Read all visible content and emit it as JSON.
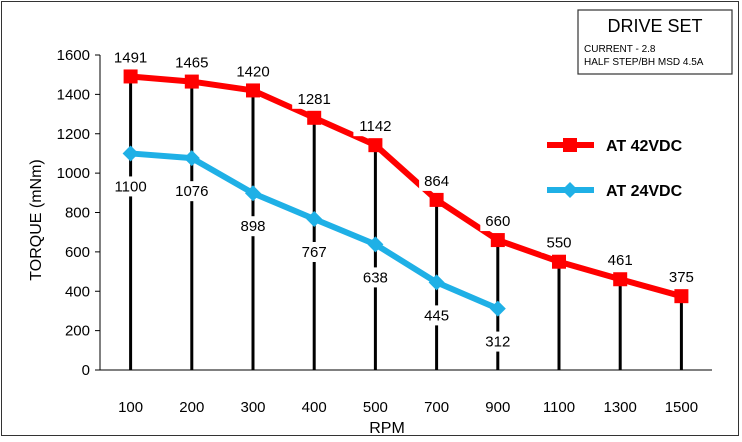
{
  "chart_data": {
    "type": "line",
    "categories": [
      "100",
      "200",
      "300",
      "400",
      "500",
      "700",
      "900",
      "1100",
      "1300",
      "1500"
    ],
    "series": [
      {
        "name": "AT 42VDC",
        "color": "#ff0000",
        "marker": "square",
        "values": [
          1491,
          1465,
          1420,
          1281,
          1142,
          864,
          660,
          550,
          461,
          375
        ]
      },
      {
        "name": "AT 24VDC",
        "color": "#1fb0e6",
        "marker": "diamond",
        "values": [
          1100,
          1076,
          898,
          767,
          638,
          445,
          312,
          null,
          null,
          null
        ]
      }
    ],
    "data_labels": {
      "AT 42VDC": [
        "1491",
        "1465",
        "1420",
        "1281",
        "1142",
        "864",
        "660",
        "550",
        "461",
        "375"
      ],
      "AT 24VDC": [
        "1100",
        "1076",
        "898",
        "767",
        "638",
        "445",
        "312"
      ]
    },
    "xlabel": "RPM",
    "ylabel": "TORQUE (mNm)",
    "ylim": [
      0,
      1600
    ],
    "yticks": [
      "0",
      "200",
      "400",
      "600",
      "800",
      "1000",
      "1200",
      "1400",
      "1600"
    ],
    "grid": false,
    "legend_position": "right",
    "drop_lines_color": "#000000"
  },
  "info_box": {
    "title": "DRIVE SET",
    "line1": "CURRENT - 2.8",
    "line2": "HALF STEP/BH MSD 4.5A"
  }
}
